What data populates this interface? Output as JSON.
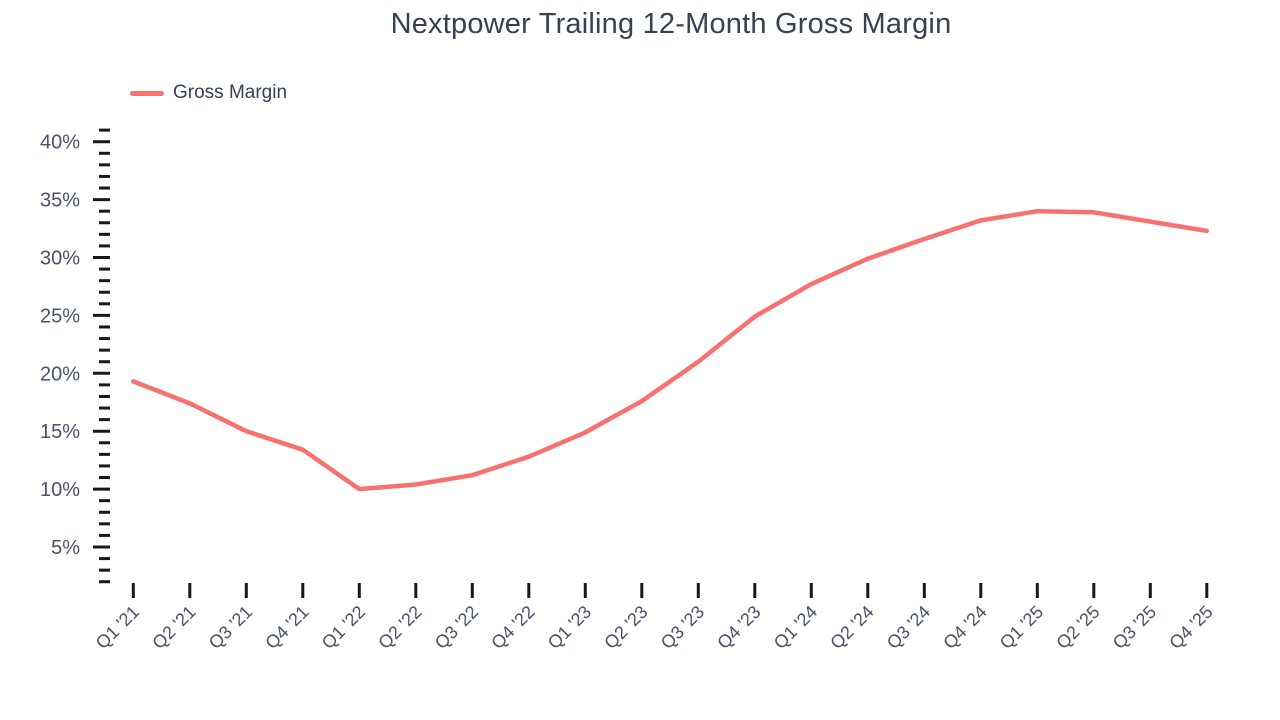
{
  "chart": {
    "title": "Nextpower Trailing 12-Month Gross Margin"
  },
  "legend": {
    "items": [
      {
        "label": "Gross Margin",
        "color": "#f87171"
      }
    ]
  },
  "chart_data": {
    "type": "line",
    "title": "Nextpower Trailing 12-Month Gross Margin",
    "categories": [
      "Q1 '21",
      "Q2 '21",
      "Q3 '21",
      "Q4 '21",
      "Q1 '22",
      "Q2 '22",
      "Q3 '22",
      "Q4 '22",
      "Q1 '23",
      "Q2 '23",
      "Q3 '23",
      "Q4 '23",
      "Q1 '24",
      "Q2 '24",
      "Q3 '24",
      "Q4 '24",
      "Q1 '25",
      "Q2 '25",
      "Q3 '25",
      "Q4 '25"
    ],
    "series": [
      {
        "name": "Gross Margin",
        "color": "#f87171",
        "values": [
          19.3,
          17.4,
          15.0,
          13.4,
          10.0,
          10.4,
          11.2,
          12.8,
          14.9,
          17.6,
          21.0,
          24.9,
          27.7,
          29.9,
          31.6,
          33.2,
          34.0,
          33.9,
          33.1,
          32.3
        ]
      }
    ],
    "y_axis": {
      "unit": "%",
      "tick_labels": [
        "5%",
        "10%",
        "15%",
        "20%",
        "25%",
        "30%",
        "35%",
        "40%"
      ],
      "label_min": 5,
      "label_max": 40,
      "major_step": 5,
      "minor_step": 1,
      "minor_min": 2,
      "minor_max": 41
    },
    "x_axis": {
      "tick_count": 20,
      "label_rotation_deg": -45
    },
    "grid": false,
    "legend_position": "top-left"
  },
  "colors": {
    "line": "#f87171",
    "title_text": "#374151",
    "axis_text": "#4a5264",
    "tick": "#16181d",
    "background": "#ffffff"
  }
}
